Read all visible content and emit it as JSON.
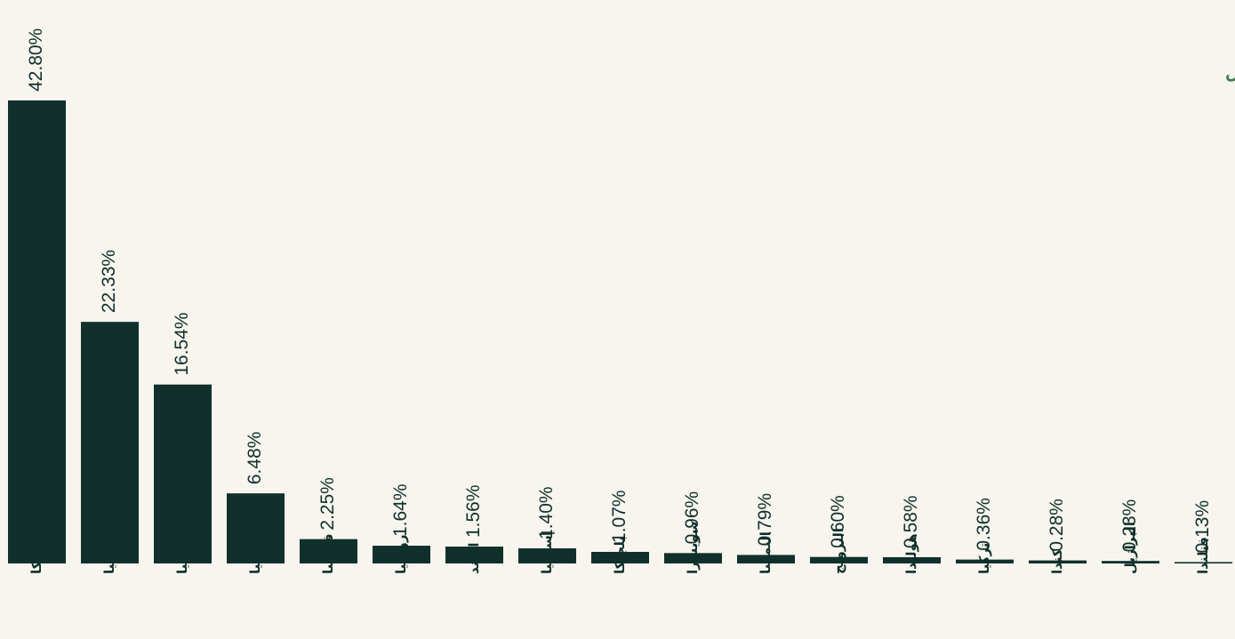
{
  "chart_data": {
    "type": "bar",
    "title": "توزيع حسب الدول",
    "categories": [
      "أمريكا",
      "ألمانيا",
      "إيطاليا",
      "بريطانيا",
      "فرنسا",
      "روسيا",
      "الهند",
      "إسبانيا",
      "بلجيكا",
      "سويسرا",
      "النمسا",
      "النرويج",
      "هولندا",
      "تركيا",
      "كندا",
      "البرازيل",
      "فنلندا"
    ],
    "values": [
      42.8,
      22.33,
      16.54,
      6.48,
      2.25,
      1.64,
      1.56,
      1.4,
      1.07,
      0.96,
      0.79,
      0.6,
      0.58,
      0.36,
      0.28,
      0.23,
      0.13
    ],
    "value_labels": [
      "42.80%",
      "22.33%",
      "16.54%",
      "6.48%",
      "2.25%",
      "1.64%",
      "1.56%",
      "1.40%",
      "1.07%",
      "0.96%",
      "0.79%",
      "0.60%",
      "0.58%",
      "0.36%",
      "0.28%",
      "0.23%",
      "0.13%"
    ],
    "color": "#11302b",
    "ylim": [
      0,
      42.8
    ]
  }
}
